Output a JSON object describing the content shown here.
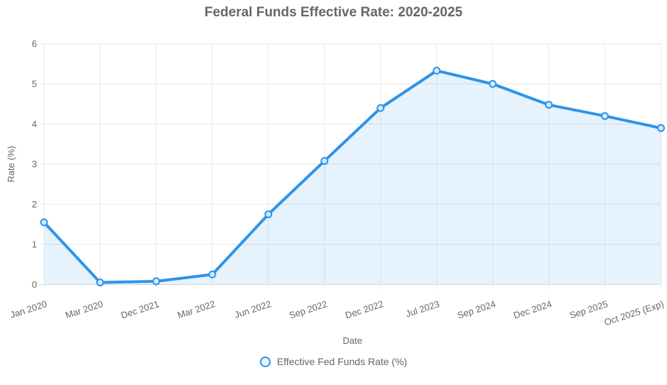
{
  "title": "Federal Funds Effective Rate: 2020-2025",
  "chart_data": {
    "type": "area",
    "title": "Federal Funds Effective Rate: 2020-2025",
    "categories": [
      "Jan 2020",
      "Mar 2020",
      "Dec 2021",
      "Mar 2022",
      "Jun 2022",
      "Sep 2022",
      "Dec 2022",
      "Jul 2023",
      "Sep 2024",
      "Dec 2024",
      "Sep 2025",
      "Oct 2025 (Exp)"
    ],
    "series": [
      {
        "name": "Effective Fed Funds Rate (%)",
        "values": [
          1.55,
          0.05,
          0.08,
          0.25,
          1.75,
          3.08,
          4.4,
          5.33,
          5.0,
          4.48,
          4.2,
          3.9
        ]
      }
    ],
    "xlabel": "Date",
    "ylabel": "Rate (%)",
    "ylim": [
      0,
      6
    ],
    "yticks": [
      0,
      1,
      2,
      3,
      4,
      5,
      6
    ],
    "grid": true,
    "legend_position": "bottom",
    "colors": {
      "line": "#2f93e8",
      "area_fill": "rgba(47,147,232,0.12)",
      "marker_fill": "#d3e9fb",
      "grid": "#e5e5e5",
      "grid_vertical": "#e9e9e9",
      "baseline": "#d9d9d9",
      "text": "#666666"
    }
  },
  "axis": {
    "x_title": "Date",
    "y_title": "Rate (%)"
  },
  "legend": {
    "label": "Effective Fed Funds Rate (%)"
  }
}
